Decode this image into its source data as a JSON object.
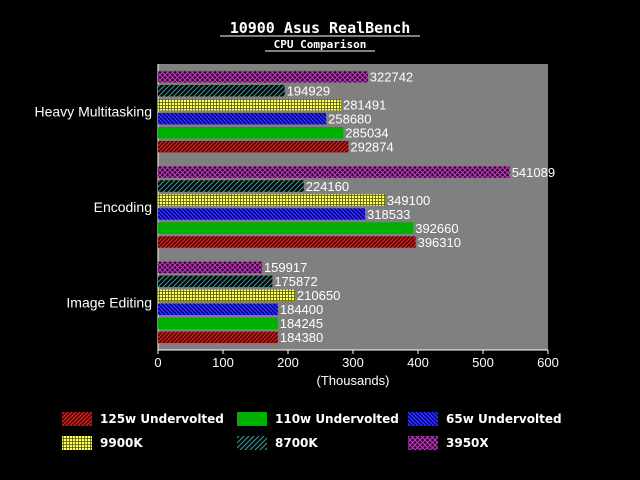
{
  "chart_data": {
    "type": "bar",
    "orientation": "horizontal",
    "title": "10900 Asus RealBench",
    "subtitle": "CPU Comparison",
    "xlabel": "(Thousands)",
    "ylabel": "",
    "xlim": [
      0,
      600
    ],
    "xticks": [
      "0",
      "100",
      "200",
      "300",
      "400",
      "500",
      "600"
    ],
    "grid": false,
    "legend_position": "bottom",
    "categories": [
      "Heavy Multitasking",
      "Encoding",
      "Image Editing"
    ],
    "series": [
      {
        "name": "125w Undervolted",
        "color": "#c00000",
        "pattern": "diag-red",
        "values": [
          292874,
          396310,
          184380
        ]
      },
      {
        "name": "110w Undervolted",
        "color": "#00b000",
        "pattern": "solid-green",
        "values": [
          285034,
          392660,
          184245
        ]
      },
      {
        "name": "65w Undervolted",
        "color": "#1a1ad0",
        "pattern": "diag-blue",
        "values": [
          258680,
          318533,
          184400
        ]
      },
      {
        "name": "9900K",
        "color": "#ffff66",
        "pattern": "grid-yellow",
        "values": [
          281491,
          349100,
          210650
        ]
      },
      {
        "name": "8700K",
        "color": "#3aa0a0",
        "pattern": "diag-teal",
        "values": [
          194929,
          224160,
          175872
        ]
      },
      {
        "name": "3950X",
        "color": "#a020a0",
        "pattern": "cross-purple",
        "values": [
          322742,
          541089,
          159917
        ]
      }
    ]
  }
}
